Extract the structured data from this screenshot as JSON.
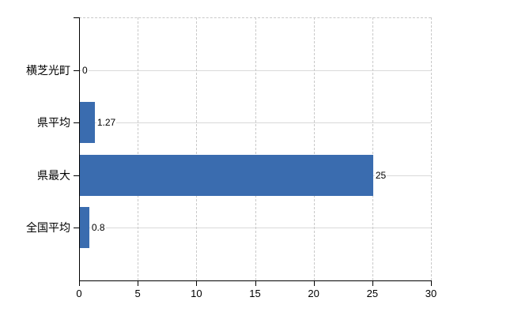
{
  "chart_data": {
    "type": "bar",
    "orientation": "horizontal",
    "title": "",
    "xlabel": "",
    "ylabel": "",
    "categories": [
      "横芝光町",
      "県平均",
      "県最大",
      "全国平均"
    ],
    "values": [
      0,
      1.27,
      25,
      0.8
    ],
    "value_labels": [
      "0",
      "1.27",
      "25",
      "0.8"
    ],
    "xlim": [
      0,
      30
    ],
    "x_ticks": [
      0,
      5,
      10,
      15,
      20,
      25,
      30
    ],
    "x_tick_labels": [
      "0",
      "5",
      "10",
      "15",
      "20",
      "25",
      "30"
    ],
    "legend": "none",
    "grid": {
      "vertical": "dashed",
      "horizontal": "solid at category centers",
      "top_border": "dashed"
    },
    "colors": {
      "bar": "#3a6caf",
      "axis": "#000000",
      "grid_h": "#d9d9d9",
      "grid_v": "#c9c9c9",
      "text": "#000000",
      "background": "#ffffff"
    }
  }
}
